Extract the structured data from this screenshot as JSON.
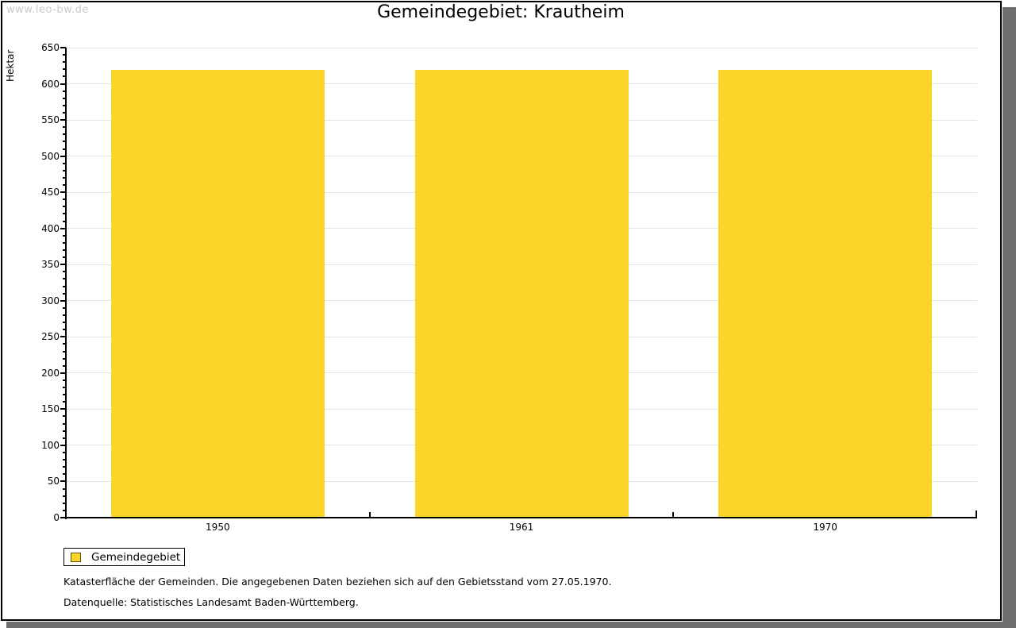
{
  "watermark": "www.leo-bw.de",
  "chart_data": {
    "type": "bar",
    "title": "Gemeindegebiet: Krautheim",
    "ylabel": "Hektar",
    "xlabel": "",
    "categories": [
      "1950",
      "1961",
      "1970"
    ],
    "series": [
      {
        "name": "Gemeindegebiet",
        "values": [
          619,
          619,
          619
        ]
      }
    ],
    "ylim": [
      0,
      650
    ],
    "ytick_step": 50,
    "yminor_step": 10,
    "grid": true,
    "legend_position": "bottom-left",
    "colors": {
      "bar": "#FCD52B",
      "gridline": "#E3E3E3",
      "axis": "#000000"
    }
  },
  "legend": {
    "label": "Gemeindegebiet",
    "swatch_color": "#FCD52B"
  },
  "notes": [
    "Katasterfläche der Gemeinden. Die angegebenen Daten beziehen sich auf den Gebietsstand vom 27.05.1970.",
    "Datenquelle: Statistisches Landesamt Baden-Württemberg."
  ]
}
